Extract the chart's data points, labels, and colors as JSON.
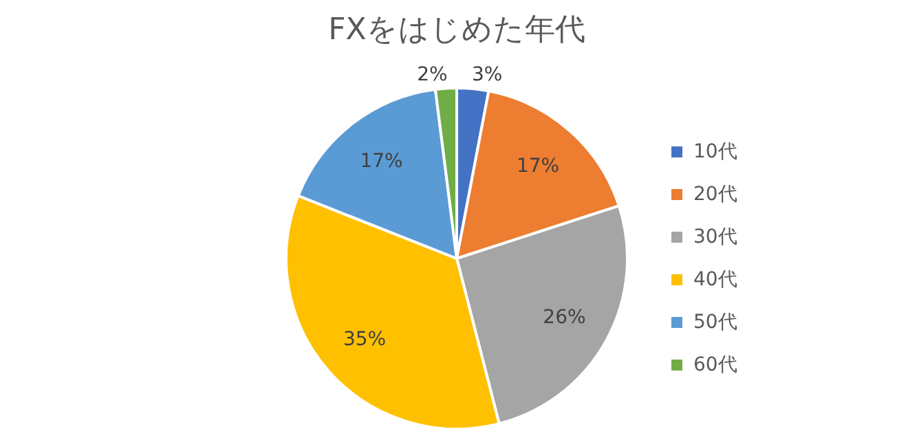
{
  "chart_data": {
    "type": "pie",
    "title": "FXをはじめた年代",
    "categories": [
      "10代",
      "20代",
      "30代",
      "40代",
      "50代",
      "60代"
    ],
    "values": [
      3,
      17,
      26,
      35,
      17,
      2
    ],
    "colors": [
      "#4472c4",
      "#ed7d31",
      "#a5a5a5",
      "#ffc000",
      "#5b9bd5",
      "#70ad47"
    ],
    "value_labels": [
      "3%",
      "17%",
      "26%",
      "35%",
      "17%",
      "2%"
    ],
    "legend": "right"
  }
}
